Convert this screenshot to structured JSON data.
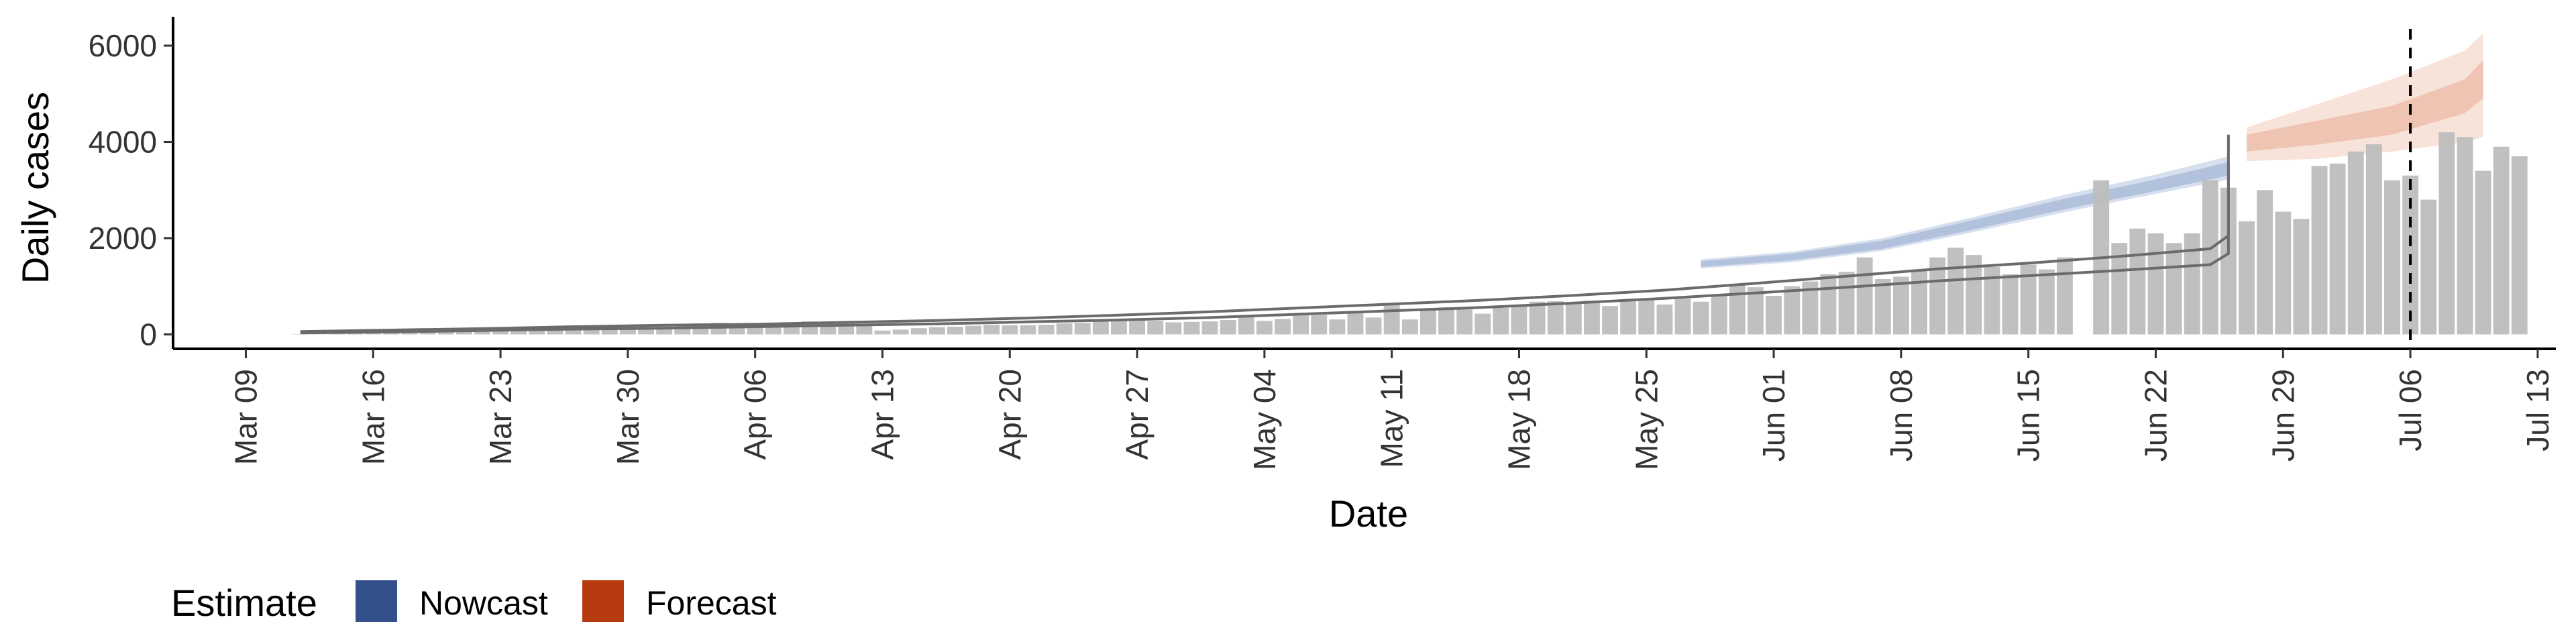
{
  "chart_data": {
    "type": "bar",
    "xlabel": "Date",
    "ylabel": "Daily cases",
    "ylim": [
      -300,
      6600
    ],
    "yticks": [
      0,
      2000,
      4000,
      6000
    ],
    "xlim": [
      "2020-03-05",
      "2020-07-14"
    ],
    "xticks": [
      "2020-03-09",
      "2020-03-16",
      "2020-03-23",
      "2020-03-30",
      "2020-04-06",
      "2020-04-13",
      "2020-04-20",
      "2020-04-27",
      "2020-05-04",
      "2020-05-11",
      "2020-05-18",
      "2020-05-25",
      "2020-06-01",
      "2020-06-08",
      "2020-06-15",
      "2020-06-22",
      "2020-06-29",
      "2020-07-06",
      "2020-07-13"
    ],
    "xtick_labels": [
      "Mar 09",
      "Mar 16",
      "Mar 23",
      "Mar 30",
      "Apr 06",
      "Apr 13",
      "Apr 20",
      "Apr 27",
      "May 04",
      "May 11",
      "May 18",
      "May 25",
      "Jun 01",
      "Jun 08",
      "Jun 15",
      "Jun 22",
      "Jun 29",
      "Jul 06",
      "Jul 13"
    ],
    "reported_cases": {
      "start_date": "2020-03-12",
      "values": [
        10,
        20,
        30,
        40,
        55,
        70,
        60,
        80,
        90,
        100,
        110,
        120,
        130,
        150,
        160,
        170,
        180,
        170,
        190,
        200,
        210,
        220,
        230,
        240,
        200,
        190,
        200,
        250,
        270,
        240,
        230,
        220,
        80,
        100,
        130,
        150,
        160,
        180,
        200,
        190,
        190,
        200,
        230,
        240,
        270,
        300,
        320,
        280,
        250,
        260,
        270,
        300,
        390,
        280,
        320,
        420,
        400,
        310,
        450,
        350,
        650,
        310,
        500,
        560,
        520,
        430,
        550,
        600,
        680,
        690,
        630,
        700,
        590,
        700,
        720,
        620,
        740,
        680,
        820,
        1050,
        980,
        800,
        1000,
        1100,
        1250,
        1300,
        1600,
        1150,
        1200,
        1350,
        1600,
        1800,
        1650,
        1400,
        1250,
        1450,
        1350,
        1600,
        null,
        3200,
        1900,
        2200,
        2100,
        1900,
        2100,
        3200,
        3050,
        2350,
        3000,
        2550,
        2400,
        3500,
        3550,
        3800,
        3950,
        3200,
        3300,
        2800,
        4200,
        4100,
        3400,
        3900,
        3700
      ]
    },
    "estimate_lines": {
      "start_date": "2020-03-12",
      "x_step_days": 5,
      "upper": [
        60,
        90,
        120,
        160,
        190,
        210,
        250,
        290,
        340,
        400,
        470,
        550,
        630,
        710,
        810,
        920,
        1060,
        1210,
        1360,
        1480,
        1620,
        1780,
        2050,
        2450,
        2880,
        3250,
        3600,
        3980,
        4150
      ],
      "lower": [
        30,
        50,
        80,
        110,
        130,
        160,
        190,
        220,
        260,
        300,
        350,
        420,
        490,
        560,
        650,
        750,
        860,
        980,
        1110,
        1220,
        1330,
        1450,
        1680,
        2000,
        2380,
        2780,
        3080,
        3380,
        3500
      ],
      "end_date": "2020-06-26"
    },
    "nowcast_band": {
      "dates": [
        "2020-05-28",
        "2020-06-02",
        "2020-06-07",
        "2020-06-12",
        "2020-06-17",
        "2020-06-22",
        "2020-06-26"
      ],
      "inner_upper": [
        1520,
        1680,
        1950,
        2380,
        2820,
        3220,
        3580
      ],
      "inner_lower": [
        1400,
        1540,
        1780,
        2180,
        2600,
        2980,
        3300
      ],
      "outer_upper": [
        1560,
        1720,
        2000,
        2440,
        2900,
        3320,
        3700
      ],
      "outer_lower": [
        1370,
        1500,
        1740,
        2130,
        2540,
        2920,
        3220
      ]
    },
    "forecast_band": {
      "dates": [
        "2020-06-27",
        "2020-07-01",
        "2020-07-05",
        "2020-07-09",
        "2020-07-10"
      ],
      "inner_upper": [
        4150,
        4450,
        4750,
        5300,
        5700
      ],
      "inner_lower": [
        3800,
        3950,
        4150,
        4600,
        4900
      ],
      "outer_upper": [
        4300,
        4800,
        5300,
        5900,
        6250
      ],
      "outer_lower": [
        3600,
        3650,
        3800,
        4000,
        4100
      ]
    },
    "vline_date": "2020-07-06",
    "legend": {
      "title": "Estimate",
      "position": "bottom-left",
      "items": [
        {
          "label": "Nowcast",
          "color": "#34508a"
        },
        {
          "label": "Forecast",
          "color": "#b83a0f"
        }
      ]
    },
    "colors": {
      "bars": "#bdbdbd",
      "lines": "#6b6b6b",
      "nowcast_inner": "#b3c2dc",
      "nowcast_outer": "#d6dfee",
      "forecast_inner": "#efc4b2",
      "forecast_outer": "#f8e3da",
      "vline": "#000000"
    }
  }
}
